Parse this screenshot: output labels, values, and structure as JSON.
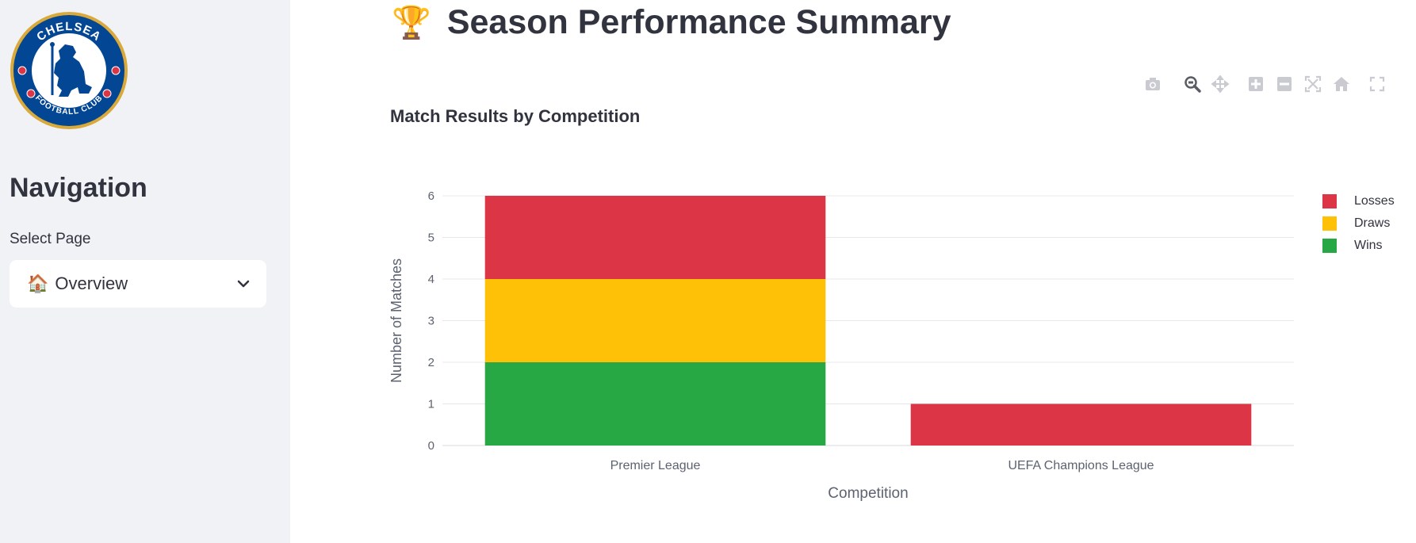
{
  "sidebar": {
    "logo": {
      "alt": "Chelsea Football Club crest",
      "text_top": "CHELSEA",
      "text_bottom": "FOOTBALL CLUB"
    },
    "nav_title": "Navigation",
    "select_label": "Select Page",
    "select_value": "Overview",
    "select_icon": "house-emoji"
  },
  "main": {
    "title": "Season Performance Summary",
    "title_icon": "trophy-emoji",
    "modebar": [
      "camera-icon",
      "zoom-icon",
      "pan-icon",
      "zoom-in-icon",
      "zoom-out-icon",
      "autoscale-icon",
      "reset-axes-icon",
      "fullscreen-icon"
    ]
  },
  "chart_data": {
    "type": "bar",
    "stacked": true,
    "title": "Match Results by Competition",
    "xlabel": "Competition",
    "ylabel": "Number of Matches",
    "categories": [
      "Premier League",
      "UEFA Champions League"
    ],
    "series": [
      {
        "name": "Wins",
        "values": [
          2,
          0
        ],
        "color": "#28a745"
      },
      {
        "name": "Draws",
        "values": [
          2,
          0
        ],
        "color": "#ffc107"
      },
      {
        "name": "Losses",
        "values": [
          2,
          1
        ],
        "color": "#dc3545"
      }
    ],
    "ylim": [
      0,
      6
    ],
    "yticks": [
      0,
      1,
      2,
      3,
      4,
      5,
      6
    ],
    "grid": true,
    "legend_position": "top-right",
    "legend_order": [
      "Losses",
      "Draws",
      "Wins"
    ]
  }
}
